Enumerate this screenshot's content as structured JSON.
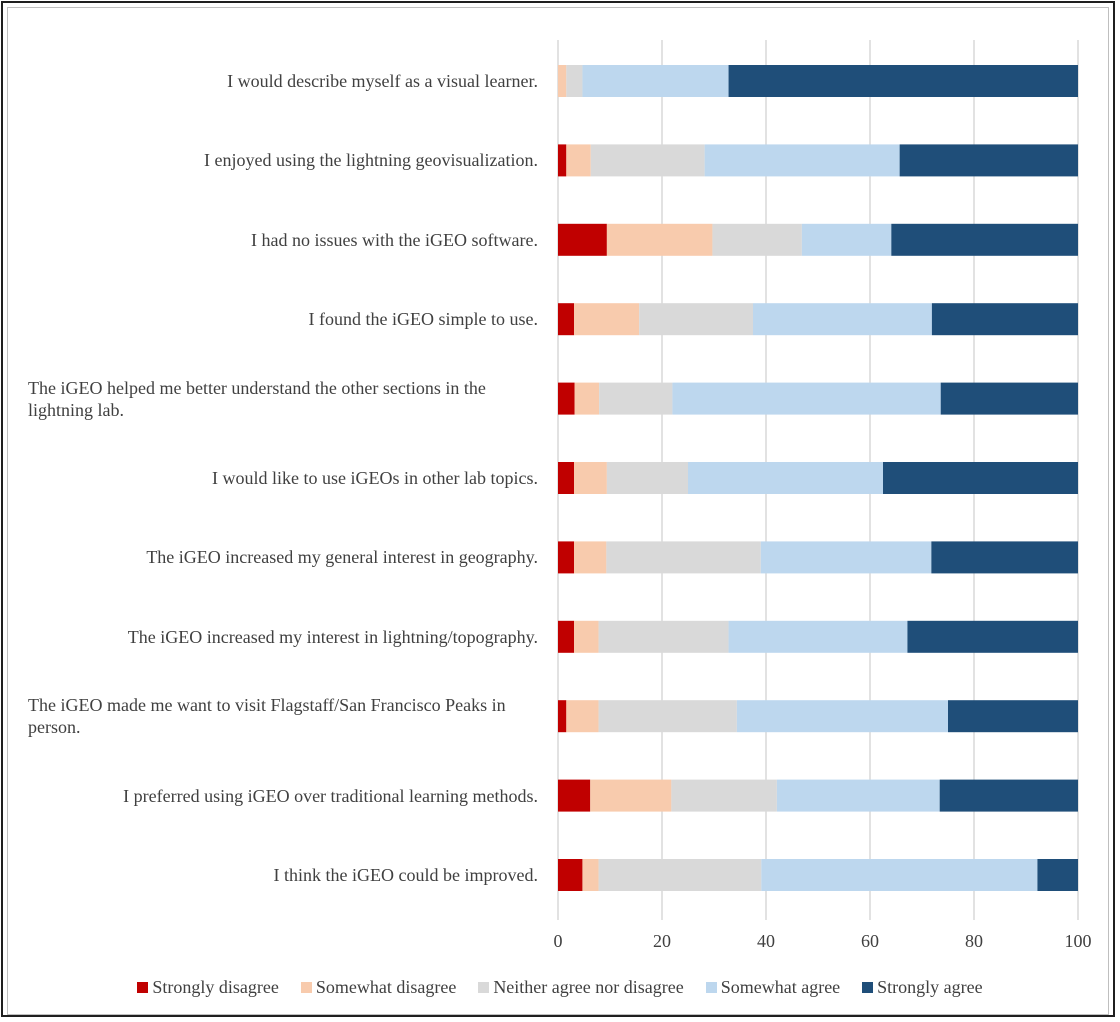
{
  "chart_data": {
    "type": "bar",
    "orientation": "horizontal",
    "stacked": true,
    "title": "",
    "xlabel": "",
    "ylabel": "",
    "xlim": [
      0,
      100
    ],
    "xticks": [
      "0",
      "20",
      "40",
      "60",
      "80",
      "100"
    ],
    "grid": "vertical",
    "legend_position": "bottom",
    "categories": [
      "I would describe myself as a visual learner.",
      "I enjoyed using the lightning geovisualization.",
      "I had no issues with the iGEO software.",
      "I found the iGEO simple to use.",
      "The iGEO helped me better understand the other sections in the lightning lab.",
      "I would like to use iGEOs in other lab topics.",
      "The iGEO increased my general interest in geography.",
      "The iGEO increased my interest in lightning/topography.",
      "The iGEO made me want to visit Flagstaff/San Francisco Peaks in person.",
      "I preferred using iGEO over traditional learning methods.",
      "I think the iGEO could be improved."
    ],
    "series": [
      {
        "name": "Strongly disagree",
        "color": "#c00000",
        "values": [
          0,
          1.6,
          9.4,
          3.1,
          3.2,
          3.1,
          3.1,
          3.1,
          1.6,
          6.2,
          4.7
        ]
      },
      {
        "name": "Somewhat disagree",
        "color": "#f8cbad",
        "values": [
          1.6,
          4.7,
          20.3,
          12.5,
          4.7,
          6.3,
          6.2,
          4.7,
          6.2,
          15.6,
          3.1
        ]
      },
      {
        "name": "Neither agree nor disagree",
        "color": "#d9d9d9",
        "values": [
          3.1,
          21.9,
          17.2,
          21.9,
          14.1,
          15.6,
          29.7,
          25.0,
          26.6,
          20.3,
          31.3
        ]
      },
      {
        "name": "Somewhat agree",
        "color": "#bdd7ee",
        "values": [
          28.1,
          37.5,
          17.2,
          34.4,
          51.6,
          37.5,
          32.8,
          34.4,
          40.6,
          31.3,
          53.1
        ]
      },
      {
        "name": "Strongly agree",
        "color": "#1f4e79",
        "values": [
          67.2,
          34.3,
          35.9,
          28.1,
          26.4,
          37.5,
          28.2,
          32.8,
          25.0,
          26.6,
          7.8
        ]
      }
    ]
  }
}
